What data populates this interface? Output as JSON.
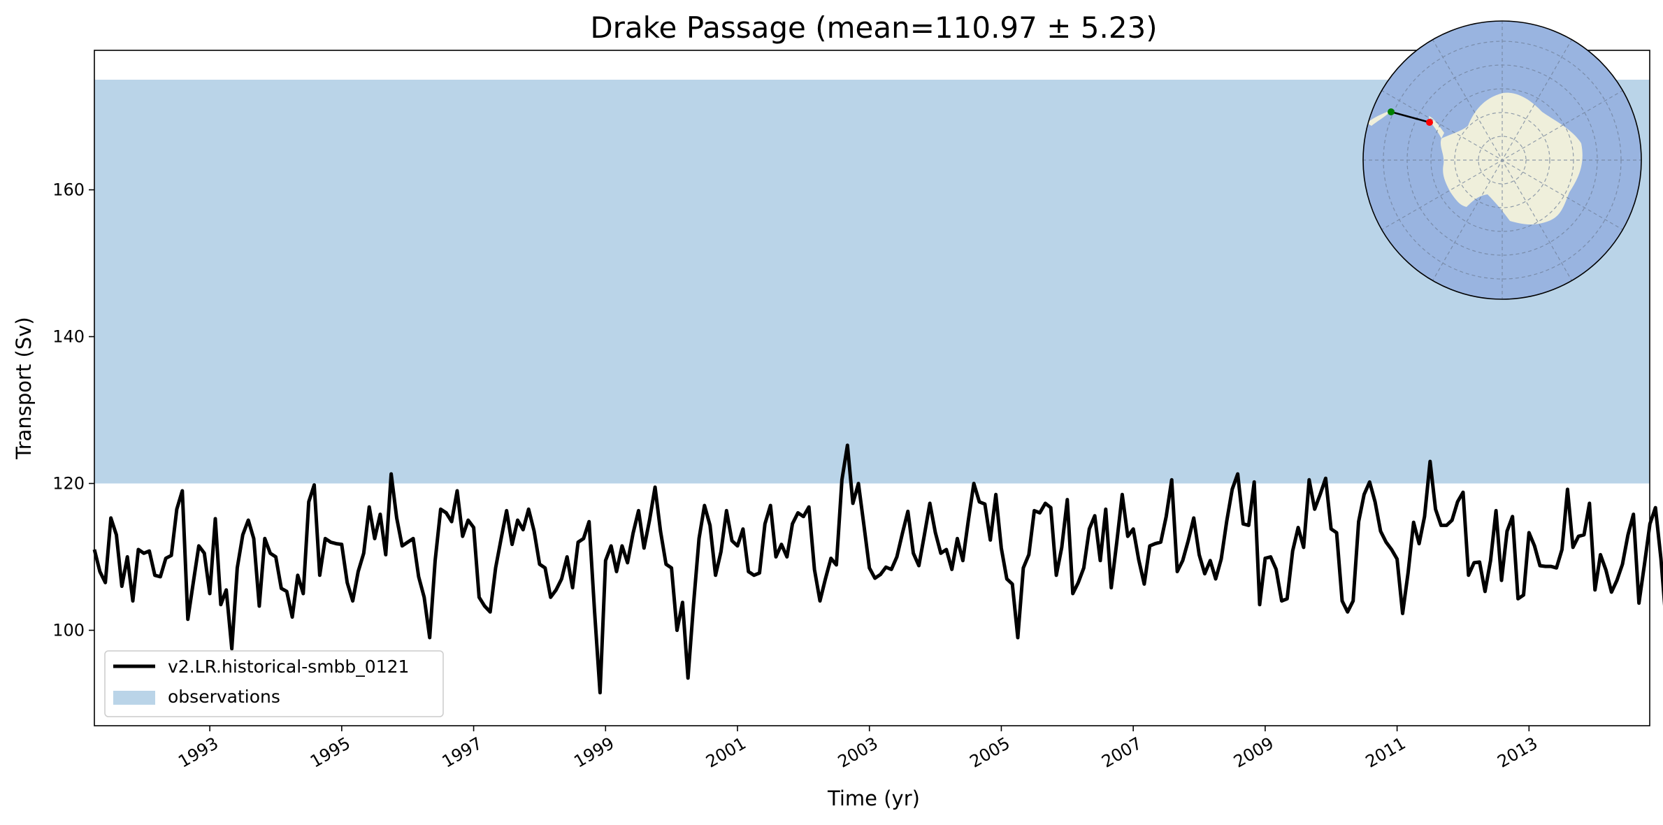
{
  "chart_data": {
    "type": "line",
    "title": "Drake Passage (mean=110.97 ± 5.23)",
    "xlabel": "Time (yr)",
    "ylabel": "Transport (Sv)",
    "xlim": [
      1991.25,
      2014.83
    ],
    "ylim": [
      87,
      179
    ],
    "x_ticks": [
      1993,
      1995,
      1997,
      1999,
      2001,
      2003,
      2005,
      2007,
      2009,
      2011,
      2013
    ],
    "x_tick_labels": [
      "1993",
      "1995",
      "1997",
      "1999",
      "2001",
      "2003",
      "2005",
      "2007",
      "2009",
      "2011",
      "2013"
    ],
    "y_ticks": [
      100,
      120,
      140,
      160
    ],
    "y_tick_labels": [
      "100",
      "120",
      "140",
      "160"
    ],
    "grid": false,
    "legend_position": "lower-left",
    "observation_band": {
      "name": "observations",
      "range": [
        120,
        175
      ],
      "color": "#bad4e8"
    },
    "series": [
      {
        "name": "v2.LR.historical-smbb_0121",
        "color": "#000000",
        "start_year": 1991.25,
        "step_months": 1,
        "values": [
          111,
          108,
          106.5,
          115.3,
          113,
          106,
          110,
          104,
          111,
          110.5,
          110.8,
          107.5,
          107.3,
          109.8,
          110.2,
          116.5,
          119,
          101.5,
          106.5,
          111.5,
          110.5,
          105,
          115.2,
          103.5,
          105.5,
          97.5,
          108.5,
          113,
          115,
          112.5,
          103.3,
          112.5,
          110.5,
          110,
          105.7,
          105.3,
          101.8,
          107.5,
          105,
          117.5,
          119.8,
          107.5,
          112.5,
          112,
          111.8,
          111.7,
          106.5,
          104,
          108,
          110.5,
          116.8,
          112.5,
          115.8,
          110.3,
          121.3,
          115.3,
          111.5,
          112,
          112.5,
          107.3,
          104.5,
          99,
          109.5,
          116.5,
          116,
          114.8,
          119,
          112.8,
          115,
          114,
          104.5,
          103.3,
          102.5,
          108.5,
          112.5,
          116.3,
          111.7,
          115,
          113.7,
          116.5,
          113.5,
          109,
          108.5,
          104.5,
          105.5,
          107,
          110,
          105.8,
          112,
          112.5,
          114.8,
          102.5,
          91.5,
          109.5,
          111.5,
          108,
          111.5,
          109.2,
          113.2,
          116.3,
          111.2,
          115,
          119.5,
          113.5,
          109,
          108.5,
          100,
          103.8,
          93.5,
          103.5,
          112.5,
          117,
          114.3,
          107.5,
          110.7,
          116.3,
          112.2,
          111.5,
          113.8,
          108,
          107.5,
          107.8,
          114.5,
          117,
          110,
          111.7,
          110,
          114.5,
          116,
          115.5,
          116.8,
          108.3,
          104,
          107,
          109.8,
          108.9,
          120.5,
          125.2,
          117.3,
          120,
          114.3,
          108.5,
          107.1,
          107.6,
          108.6,
          108.3,
          110,
          113.2,
          116.2,
          110.5,
          108.8,
          113,
          117.3,
          113.3,
          110.5,
          111,
          108.3,
          112.5,
          109.5,
          115,
          120,
          117.5,
          117.2,
          112.3,
          118.5,
          111.2,
          107,
          106.3,
          99,
          108.5,
          110.3,
          116.3,
          116,
          117.3,
          116.7,
          107.5,
          111.3,
          117.8,
          105,
          106.5,
          108.5,
          113.8,
          115.6,
          109.5,
          116.5,
          105.8,
          112,
          118.5,
          112.8,
          113.8,
          109.6,
          106.3,
          111.5,
          111.8,
          112,
          115.5,
          120.5,
          108,
          109.5,
          112.2,
          115.3,
          110.3,
          107.7,
          109.5,
          107,
          109.7,
          114.8,
          119.2,
          121.3,
          114.5,
          114.3,
          120.2,
          103.5,
          109.8,
          110,
          108.3,
          104,
          104.3,
          110.8,
          114,
          111.3,
          120.5,
          116.5,
          118.5,
          120.7,
          113.8,
          113.3,
          104,
          102.5,
          104,
          114.8,
          118.5,
          120.2,
          117.5,
          113.5,
          112,
          111,
          109.7,
          102.3,
          107.8,
          114.7,
          111.8,
          115.5,
          123,
          116.5,
          114.3,
          114.3,
          115,
          117.5,
          118.8,
          107.5,
          109.2,
          109.3,
          105.3,
          109.5,
          116.3,
          106.8,
          113.5,
          115.5,
          104.3,
          104.8,
          113.3,
          111.5,
          108.8,
          108.7,
          108.7,
          108.5,
          111,
          119.2,
          111.3,
          112.8,
          113,
          117.3,
          105.5,
          110.3,
          108.2,
          105.2,
          106.8,
          109,
          113,
          115.8,
          103.7,
          109,
          114.5,
          116.7,
          109.8,
          100.5,
          103,
          99.5
        ]
      }
    ]
  },
  "inset_map": {
    "projection": "south-polar-stereographic",
    "ocean_color": "#99b4e0",
    "land_color": "#efefdb",
    "transect_start_color": "#008000",
    "transect_end_color": "#ff0000"
  }
}
